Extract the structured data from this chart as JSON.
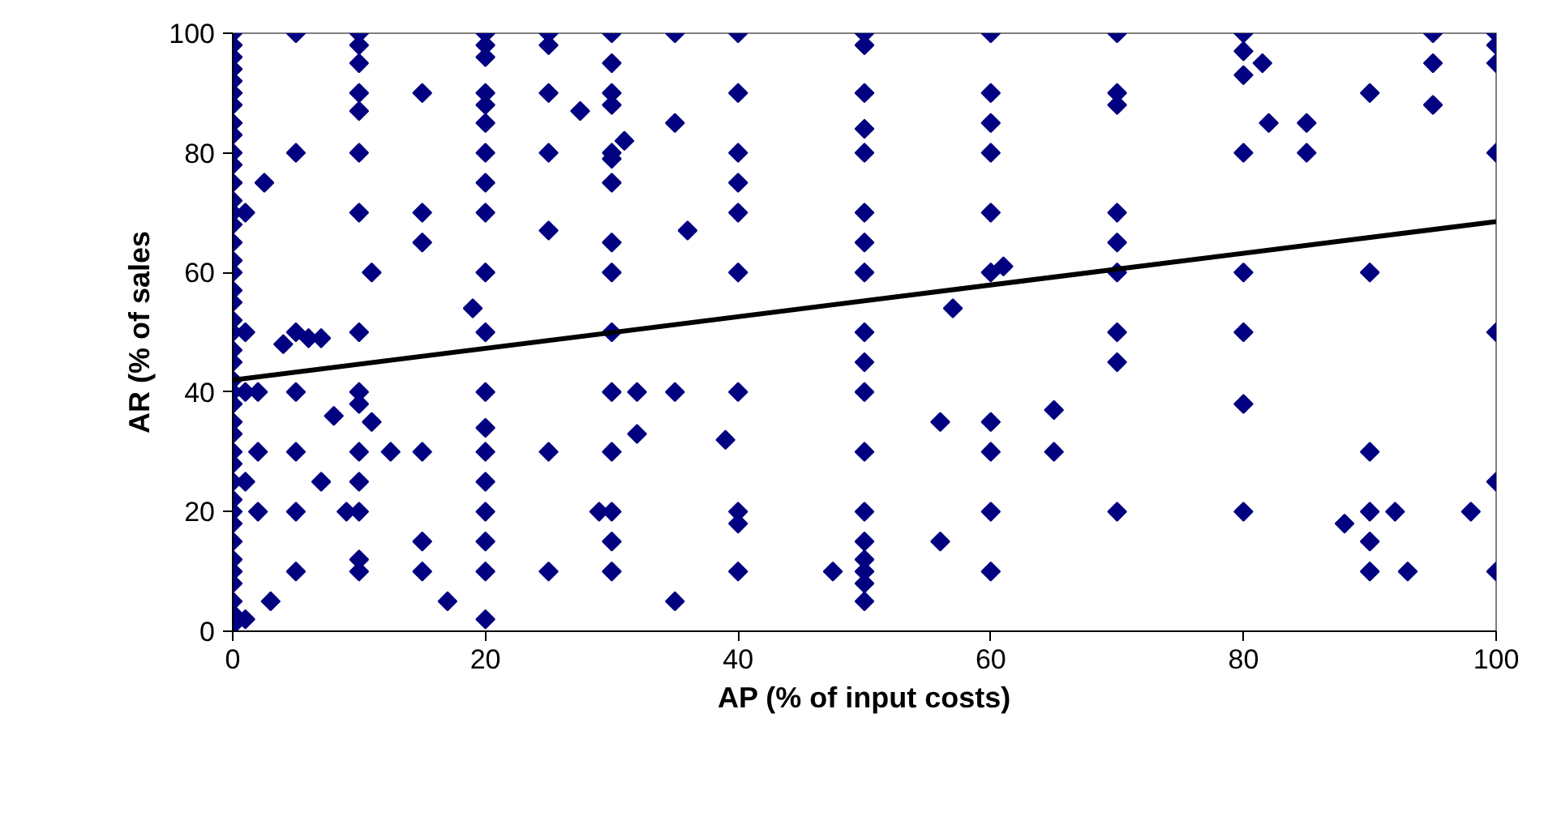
{
  "chart_data": {
    "type": "scatter",
    "xlabel": "AP (% of input costs)",
    "ylabel": "AR (% of sales",
    "xlim": [
      0,
      100
    ],
    "ylim": [
      0,
      100
    ],
    "xticks": [
      0,
      20,
      40,
      60,
      80,
      100
    ],
    "yticks": [
      0,
      20,
      40,
      60,
      80,
      100
    ],
    "grid": false,
    "series": [
      {
        "color": "#000080",
        "marker": "diamond",
        "x": [
          0,
          0,
          0,
          0,
          0,
          0,
          0,
          0,
          0,
          0,
          0,
          0,
          0,
          0,
          0,
          0,
          0,
          0,
          0,
          0,
          0,
          0,
          0,
          0,
          0,
          0,
          0,
          0,
          0,
          0,
          0,
          0,
          0,
          0,
          0,
          0,
          0,
          0,
          0,
          0,
          0,
          0,
          1,
          1,
          1,
          1,
          1,
          2,
          2,
          2,
          2.5,
          3,
          4,
          5,
          5,
          5,
          5,
          5,
          5,
          5,
          6,
          7,
          7,
          8,
          9,
          10,
          10,
          10,
          10,
          10,
          10,
          10,
          10,
          10,
          10,
          10,
          10,
          10,
          10,
          10,
          11,
          11,
          12.5,
          15,
          15,
          15,
          15,
          15,
          15,
          17,
          19,
          20,
          20,
          20,
          20,
          20,
          20,
          20,
          20,
          20,
          20,
          20,
          20,
          20,
          20,
          20,
          20,
          20,
          20,
          20,
          25,
          25,
          25,
          25,
          25,
          25,
          25,
          27.5,
          29,
          30,
          30,
          30,
          30,
          30,
          30,
          30,
          30,
          30,
          30,
          30,
          30,
          30,
          30,
          30,
          31,
          32,
          32,
          35,
          35,
          35,
          35,
          36,
          39,
          40,
          40,
          40,
          40,
          40,
          40,
          40,
          40,
          40,
          40,
          47.5,
          50,
          50,
          50,
          50,
          50,
          50,
          50,
          50,
          50,
          50,
          50,
          50,
          50,
          50,
          50,
          50,
          50,
          50,
          56,
          56,
          57,
          60,
          60,
          60,
          60,
          60,
          60,
          60,
          60,
          60,
          60,
          61,
          65,
          65,
          70,
          70,
          70,
          70,
          70,
          70,
          70,
          70,
          70,
          80,
          80,
          80,
          80,
          80,
          80,
          80,
          80,
          81.5,
          82,
          85,
          85,
          88,
          90,
          90,
          90,
          90,
          90,
          90,
          92,
          93,
          95,
          95,
          95,
          98,
          100,
          100,
          100,
          100,
          100,
          100,
          100
        ],
        "values": [
          100,
          98,
          96,
          94,
          92,
          90,
          88,
          85,
          83,
          80,
          78,
          75,
          72,
          70,
          68,
          65,
          62,
          60,
          57,
          55,
          52,
          50,
          47,
          45,
          42,
          40,
          38,
          35,
          33,
          30,
          28,
          25,
          22,
          20,
          18,
          15,
          12,
          10,
          8,
          5,
          3,
          1,
          70,
          50,
          40,
          25,
          2,
          40,
          30,
          20,
          75,
          5,
          48,
          100,
          80,
          50,
          40,
          30,
          20,
          10,
          49,
          25,
          49,
          36,
          20,
          100,
          98,
          95,
          90,
          87,
          80,
          70,
          50,
          40,
          38,
          30,
          25,
          20,
          12,
          10,
          60,
          35,
          30,
          90,
          70,
          65,
          30,
          15,
          10,
          5,
          54,
          100,
          98,
          96,
          90,
          88,
          85,
          80,
          75,
          70,
          60,
          50,
          40,
          34,
          30,
          25,
          20,
          15,
          10,
          2,
          100,
          98,
          90,
          80,
          67,
          30,
          10,
          87,
          20,
          100,
          95,
          90,
          88,
          80,
          79,
          75,
          65,
          60,
          50,
          40,
          30,
          20,
          15,
          10,
          82,
          40,
          33,
          100,
          85,
          40,
          5,
          67,
          32,
          100,
          90,
          80,
          75,
          70,
          60,
          40,
          20,
          18,
          10,
          10,
          100,
          98,
          90,
          84,
          80,
          70,
          65,
          60,
          50,
          45,
          40,
          30,
          20,
          15,
          12,
          10,
          8,
          5,
          15,
          35,
          54,
          100,
          90,
          85,
          80,
          70,
          60,
          35,
          30,
          20,
          10,
          61,
          37,
          30,
          100,
          90,
          88,
          70,
          65,
          60,
          50,
          45,
          20,
          100,
          97,
          93,
          80,
          60,
          50,
          38,
          20,
          95,
          85,
          85,
          80,
          18,
          90,
          60,
          30,
          20,
          15,
          10,
          20,
          10,
          100,
          95,
          88,
          20,
          100,
          98,
          95,
          80,
          50,
          25,
          10
        ]
      },
      {
        "type": "line",
        "color": "#000000",
        "x": [
          0,
          100
        ],
        "values": [
          42,
          68.5
        ]
      }
    ]
  }
}
